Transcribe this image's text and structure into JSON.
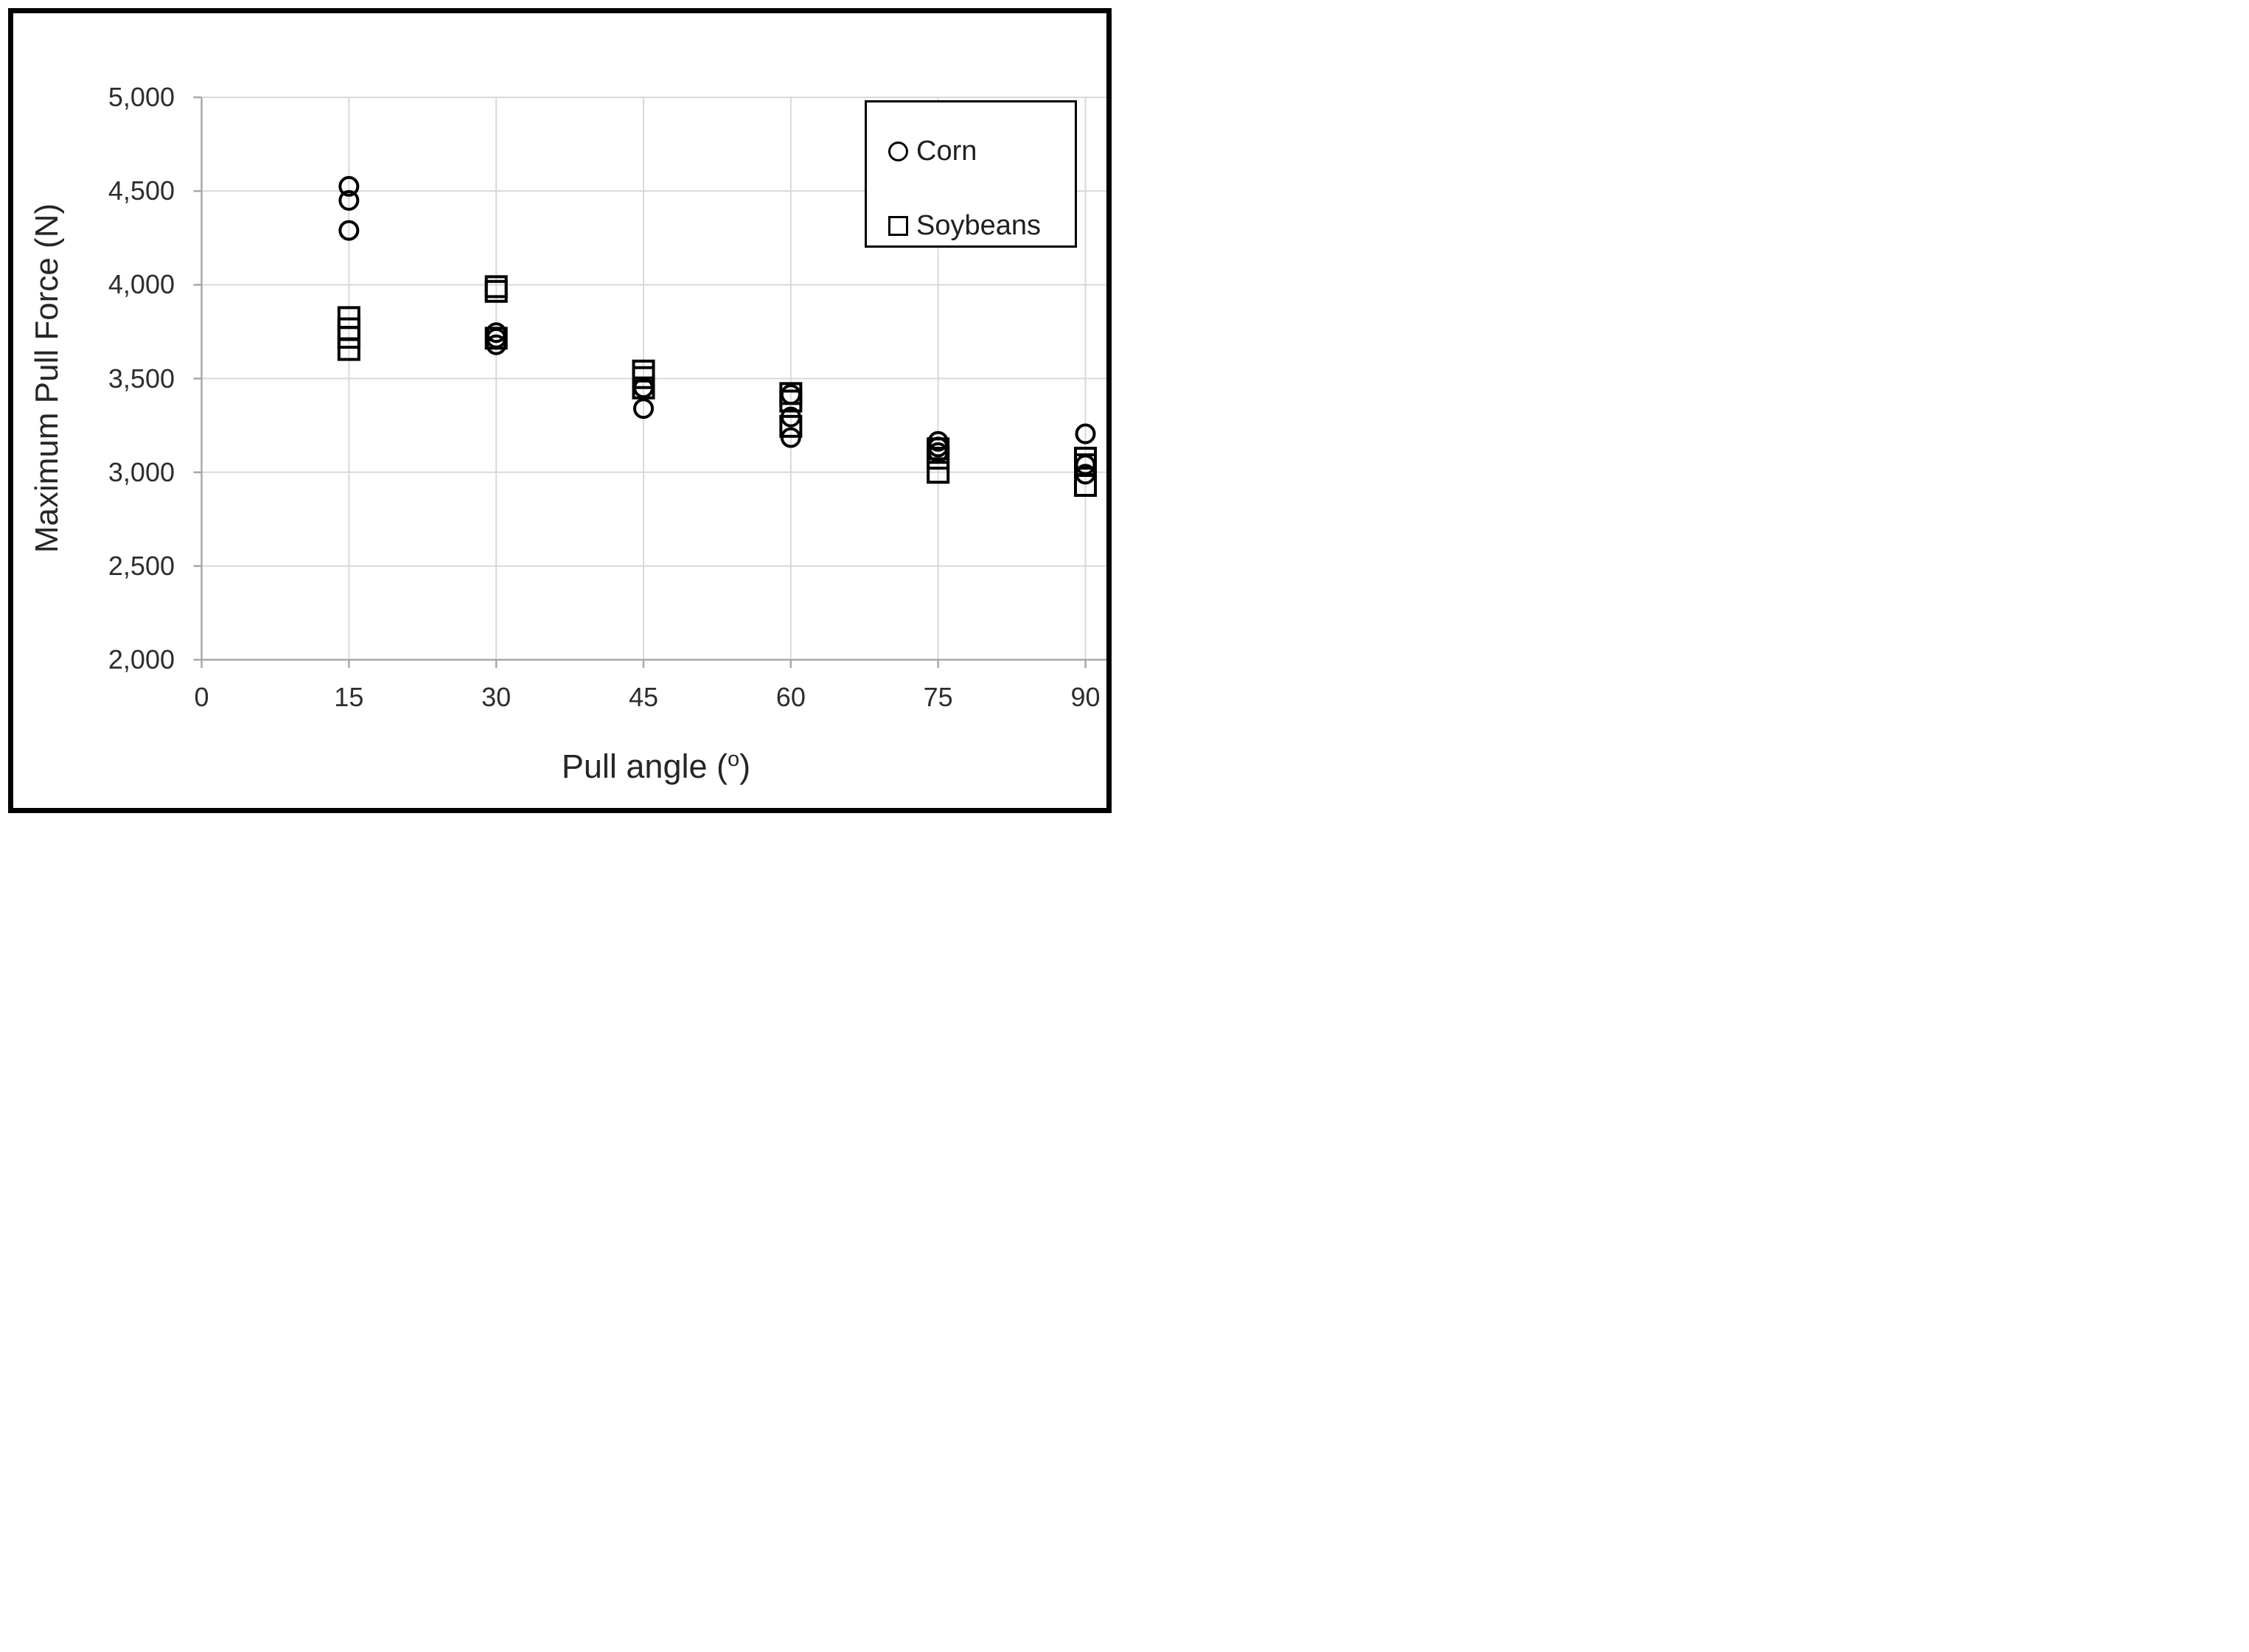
{
  "figure_title": "Maximum pull force versus pull angle scatter plot",
  "chart_data": {
    "type": "scatter",
    "title": "",
    "ylabel": "Maximum Pull Force (N)",
    "xlabel_prefix": "Pull angle (",
    "xlabel_sup": "o",
    "xlabel_suffix": ")",
    "xlim": [
      0,
      90
    ],
    "ylim": [
      2000,
      5000
    ],
    "grid": true,
    "legend_position": "top-right",
    "x_ticks": [
      0,
      15,
      30,
      45,
      60,
      75,
      90
    ],
    "y_ticks": [
      5000,
      4500,
      4000,
      3500,
      3000,
      2500,
      2000
    ],
    "y_tick_labels": [
      "5,000",
      "4,500",
      "4,000",
      "3,500",
      "3,000",
      "2,500",
      "2,000"
    ],
    "x_tick_labels": [
      "0",
      "15",
      "30",
      "45",
      "60",
      "75",
      "90"
    ],
    "series": [
      {
        "name": "Corn",
        "marker": "circle",
        "points": [
          [
            15,
            4525
          ],
          [
            15,
            4450
          ],
          [
            15,
            4290
          ],
          [
            30,
            3745
          ],
          [
            30,
            3715
          ],
          [
            30,
            3680
          ],
          [
            45,
            3450
          ],
          [
            45,
            3340
          ],
          [
            60,
            3415
          ],
          [
            60,
            3295
          ],
          [
            60,
            3185
          ],
          [
            75,
            3165
          ],
          [
            75,
            3135
          ],
          [
            75,
            3105
          ],
          [
            90,
            3205
          ],
          [
            90,
            3040
          ],
          [
            90,
            2990
          ]
        ]
      },
      {
        "name": "Soybeans",
        "marker": "square",
        "points": [
          [
            15,
            3825
          ],
          [
            15,
            3765
          ],
          [
            15,
            3720
          ],
          [
            15,
            3655
          ],
          [
            30,
            3990
          ],
          [
            30,
            3965
          ],
          [
            30,
            3715
          ],
          [
            45,
            3540
          ],
          [
            45,
            3505
          ],
          [
            45,
            3450
          ],
          [
            60,
            3420
          ],
          [
            60,
            3380
          ],
          [
            60,
            3245
          ],
          [
            75,
            3125
          ],
          [
            75,
            3075
          ],
          [
            75,
            3000
          ],
          [
            90,
            3075
          ],
          [
            90,
            3040
          ],
          [
            90,
            2930
          ]
        ]
      }
    ]
  },
  "colors": {
    "marker_stroke": "#000000",
    "gridline": "#d9d9d9",
    "axis_line": "#a8a8a8",
    "tick_text": "#2d2d2d",
    "title_text": "#262626",
    "frame": "#000000",
    "background": "#ffffff"
  }
}
